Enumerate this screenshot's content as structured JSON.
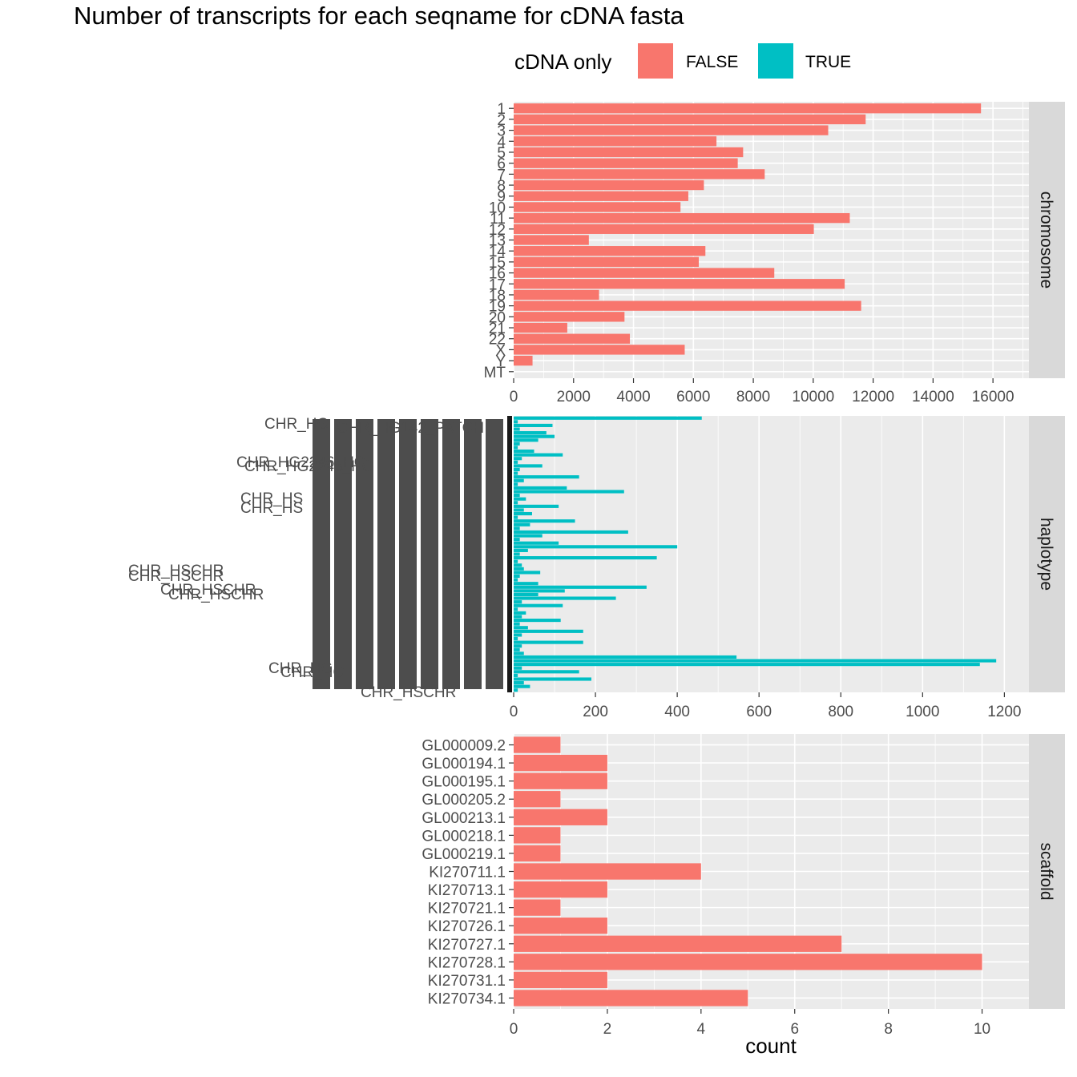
{
  "chart_data": {
    "type": "bar",
    "orientation": "horizontal",
    "title": "Number of transcripts for each seqname for cDNA fasta",
    "xlabel": "count",
    "legend": {
      "title": "cDNA only",
      "position": "top",
      "entries": [
        {
          "label": "FALSE",
          "color": "#f8766d"
        },
        {
          "label": "TRUE",
          "color": "#00bfc4"
        }
      ]
    },
    "grid": true,
    "facets": [
      {
        "name": "chromosome",
        "fill": "FALSE",
        "xlim": [
          0,
          17200
        ],
        "xticks": [
          "0",
          "2000",
          "4000",
          "6000",
          "8000",
          "10000",
          "12000",
          "14000",
          "16000"
        ],
        "categories": [
          "1",
          "2",
          "3",
          "4",
          "5",
          "6",
          "7",
          "8",
          "9",
          "10",
          "11",
          "12",
          "13",
          "14",
          "15",
          "16",
          "17",
          "18",
          "19",
          "20",
          "21",
          "22",
          "X",
          "Y",
          "MT"
        ],
        "values": [
          15600,
          11750,
          10500,
          6770,
          7660,
          7480,
          8380,
          6350,
          5830,
          5570,
          11220,
          10020,
          2510,
          6400,
          6180,
          8700,
          11050,
          2850,
          11600,
          3700,
          1790,
          3880,
          5710,
          630,
          0
        ]
      },
      {
        "name": "haplotype",
        "fill": "TRUE",
        "xlim": [
          0,
          1260
        ],
        "xticks": [
          "0",
          "200",
          "400",
          "600",
          "800",
          "1000",
          "1200"
        ],
        "visible_labels": [
          "CHR_HG",
          "CHR_HG142_PATCH",
          "CHR_HG2246_HG",
          "CHR_HG2245_HG",
          "CHR_HS",
          "CHR_HS",
          "CHR_HSCHR",
          "CHR_HSCHR",
          "CHR_HSCHR",
          "CHR_HSCHR",
          "CHR_HG",
          "CHR_HG",
          "CHR_HSCHR"
        ],
        "values": [
          460,
          10,
          95,
          15,
          80,
          100,
          60,
          15,
          10,
          50,
          120,
          20,
          10,
          70,
          15,
          10,
          160,
          25,
          10,
          130,
          270,
          15,
          30,
          10,
          110,
          25,
          45,
          10,
          150,
          40,
          15,
          280,
          70,
          15,
          110,
          400,
          35,
          15,
          350,
          10,
          20,
          25,
          65,
          15,
          10,
          60,
          325,
          125,
          60,
          250,
          20,
          120,
          10,
          30,
          20,
          115,
          15,
          35,
          170,
          20,
          10,
          170,
          20,
          15,
          25,
          545,
          1180,
          1140,
          20,
          160,
          10,
          190,
          25,
          40,
          10
        ]
      },
      {
        "name": "scaffold",
        "fill": "FALSE",
        "xlim": [
          0,
          11
        ],
        "xticks": [
          "0",
          "2",
          "4",
          "6",
          "8",
          "10"
        ],
        "categories": [
          "GL000009.2",
          "GL000194.1",
          "GL000195.1",
          "GL000205.2",
          "GL000213.1",
          "GL000218.1",
          "GL000219.1",
          "KI270711.1",
          "KI270713.1",
          "KI270721.1",
          "KI270726.1",
          "KI270727.1",
          "KI270728.1",
          "KI270731.1",
          "KI270734.1"
        ],
        "values": [
          1,
          2,
          2,
          1,
          2,
          1,
          1,
          4,
          2,
          1,
          2,
          7,
          10,
          2,
          5
        ]
      }
    ]
  }
}
